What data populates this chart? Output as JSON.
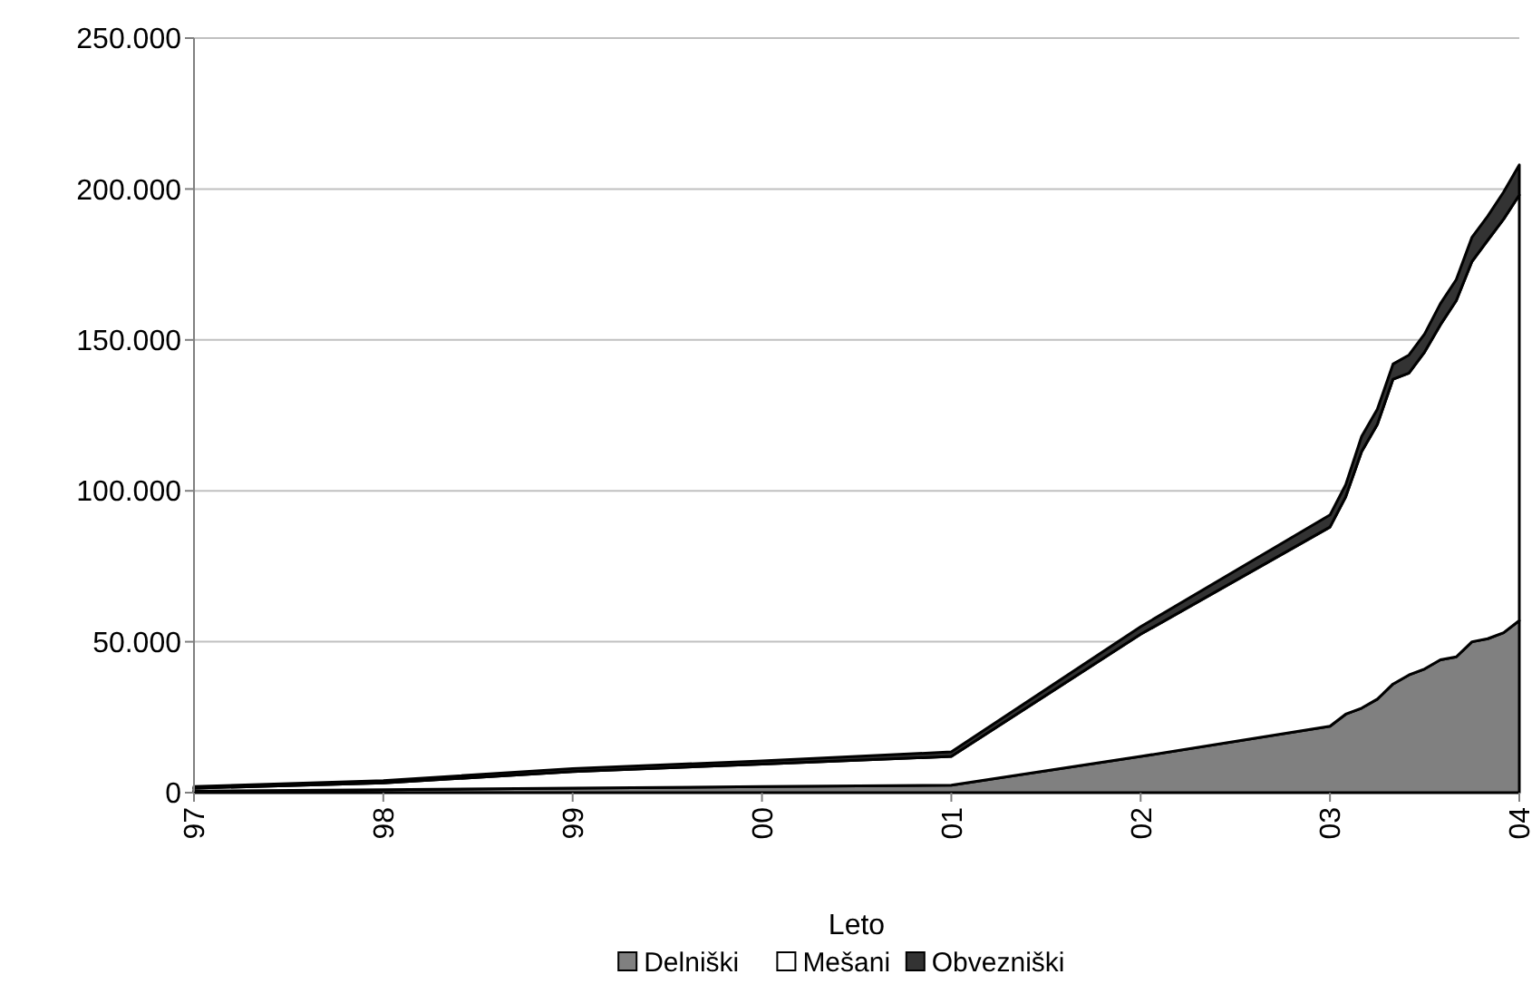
{
  "chart_data": {
    "type": "area",
    "stacked": true,
    "xlabel": "Leto",
    "x": [
      1997,
      1998,
      1999,
      2000,
      2001,
      2002,
      2003,
      2003.083,
      2003.167,
      2003.25,
      2003.333,
      2003.417,
      2003.5,
      2003.583,
      2003.667,
      2003.75,
      2003.833,
      2003.917,
      2004
    ],
    "series": [
      {
        "name": "Delniški",
        "color": "#808080",
        "values": [
          500,
          1000,
          1500,
          2000,
          2500,
          12000,
          22000,
          26000,
          28000,
          31000,
          36000,
          39000,
          41000,
          44000,
          45000,
          50000,
          51000,
          53000,
          57000
        ]
      },
      {
        "name": "Mešani",
        "color": "#ffffff",
        "values": [
          1000,
          2200,
          5500,
          7500,
          9500,
          40500,
          66000,
          72000,
          85000,
          91000,
          101000,
          100000,
          105000,
          111000,
          118000,
          126000,
          132000,
          137000,
          141000
        ]
      },
      {
        "name": "Obvezniški",
        "color": "#333333",
        "values": [
          500,
          800,
          1000,
          1000,
          1500,
          2500,
          4000,
          4000,
          5000,
          5000,
          5000,
          6000,
          6000,
          7000,
          7000,
          8000,
          8000,
          9000,
          10000
        ]
      }
    ],
    "xlim": [
      1997,
      2004
    ],
    "xticks": [
      {
        "value": 1997,
        "label": "97"
      },
      {
        "value": 1998,
        "label": "98"
      },
      {
        "value": 1999,
        "label": "99"
      },
      {
        "value": 2000,
        "label": "00"
      },
      {
        "value": 2001,
        "label": "01"
      },
      {
        "value": 2002,
        "label": "02"
      },
      {
        "value": 2003,
        "label": "03"
      },
      {
        "value": 2004,
        "label": "04"
      }
    ],
    "ylim": [
      0,
      250000
    ],
    "yticks": [
      0,
      {
        "value": 50000,
        "label": "50.000"
      },
      {
        "value": 100000,
        "label": "100.000"
      },
      {
        "value": 150000,
        "label": "150.000"
      },
      {
        "value": 200000,
        "label": "200.000"
      },
      {
        "value": 250000,
        "label": "250.000"
      }
    ],
    "grid": "y",
    "legend": "bottom"
  }
}
